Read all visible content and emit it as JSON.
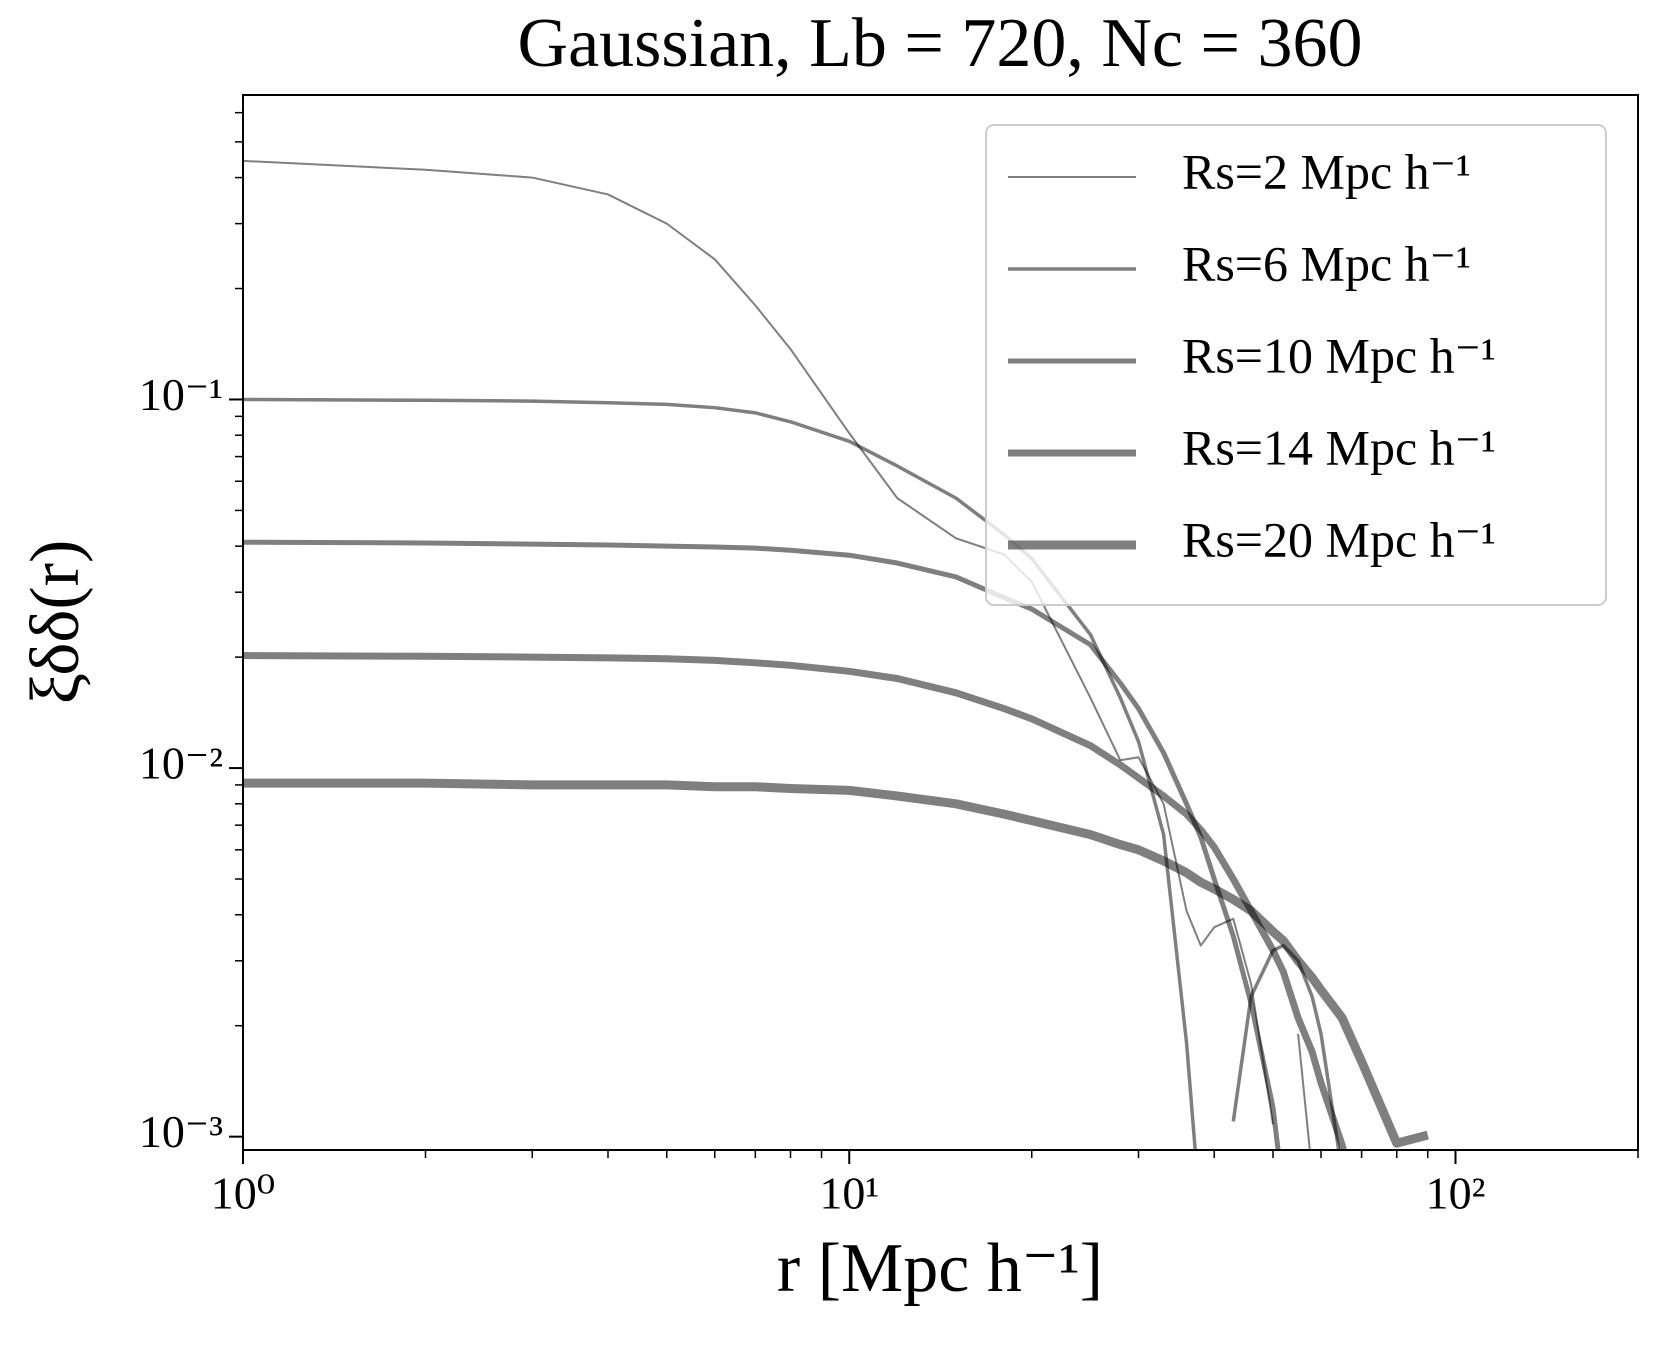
{
  "chart_data": {
    "type": "line",
    "title": "Gaussian, Lb = 720,  Nc = 360",
    "x_label": "r [Mpc h⁻¹]",
    "y_label": "ξδδ(r)",
    "x_scale": "log",
    "y_scale": "log",
    "xlim": [
      1,
      200
    ],
    "ylim": [
      0.00092,
      0.67
    ],
    "xticks": [
      {
        "value": 1,
        "label": "10⁰"
      },
      {
        "value": 10,
        "label": "10¹"
      },
      {
        "value": 100,
        "label": "10²"
      }
    ],
    "yticks": [
      {
        "value": 0.001,
        "label": "10⁻³"
      },
      {
        "value": 0.01,
        "label": "10⁻²"
      },
      {
        "value": 0.1,
        "label": "10⁻¹"
      }
    ],
    "xminorticks": [
      2,
      3,
      4,
      5,
      6,
      7,
      8,
      9,
      20,
      30,
      40,
      50,
      60,
      70,
      80,
      90,
      200
    ],
    "yminorticks": [
      0.002,
      0.003,
      0.004,
      0.005,
      0.006,
      0.007,
      0.008,
      0.009,
      0.02,
      0.03,
      0.04,
      0.05,
      0.06,
      0.07,
      0.08,
      0.09,
      0.2,
      0.3,
      0.4,
      0.5,
      0.6
    ],
    "legend": "upper right",
    "alpha": 0.5,
    "x": [
      1,
      2,
      3,
      4,
      5,
      6,
      7,
      8,
      10,
      12,
      15,
      18,
      20,
      25,
      28,
      30,
      33,
      36,
      38,
      40,
      43,
      46,
      50,
      52,
      55,
      58,
      60,
      65,
      70,
      80,
      90,
      100
    ],
    "series": [
      {
        "name": "Rs=2 Mpc h⁻¹",
        "color": "#000000",
        "linewidth": 2,
        "values": [
          0.444,
          0.42,
          0.4,
          0.36,
          0.3,
          0.24,
          0.18,
          0.137,
          0.081,
          0.054,
          0.042,
          0.038,
          0.032,
          0.0155,
          0.0105,
          0.0107,
          0.008,
          0.0041,
          0.0033,
          0.0037,
          0.0039,
          0.0026,
          0.00108,
          null,
          0.0019,
          0.0008,
          null,
          null,
          null,
          null,
          null,
          null
        ]
      },
      {
        "name": "Rs=6 Mpc h⁻¹",
        "color": "#000000",
        "linewidth": 3.5,
        "values": [
          0.1,
          0.0995,
          0.099,
          0.098,
          0.097,
          0.095,
          0.092,
          0.087,
          0.077,
          0.066,
          0.054,
          0.043,
          0.037,
          0.023,
          0.0155,
          0.0118,
          0.0066,
          0.0018,
          0.0006,
          null,
          0.0011,
          0.0024,
          0.0032,
          0.0033,
          0.003,
          0.0024,
          0.0019,
          0.0008,
          null,
          null,
          null,
          null
        ]
      },
      {
        "name": "Rs=10 Mpc h⁻¹",
        "color": "#000000",
        "linewidth": 5,
        "values": [
          0.041,
          0.0408,
          0.0405,
          0.0403,
          0.04,
          0.0398,
          0.0395,
          0.039,
          0.0378,
          0.036,
          0.033,
          0.029,
          0.027,
          0.0216,
          0.017,
          0.0145,
          0.011,
          0.008,
          0.0065,
          0.005,
          0.0035,
          0.0023,
          0.0012,
          0.0007,
          null,
          null,
          null,
          null,
          null,
          null,
          null,
          null
        ]
      },
      {
        "name": "Rs=14 Mpc h⁻¹",
        "color": "#000000",
        "linewidth": 7,
        "values": [
          0.0202,
          0.0201,
          0.02,
          0.0199,
          0.0198,
          0.0196,
          0.0193,
          0.019,
          0.0183,
          0.0175,
          0.016,
          0.0145,
          0.0136,
          0.0115,
          0.0102,
          0.0094,
          0.0084,
          0.0075,
          0.0068,
          0.0061,
          0.005,
          0.0041,
          0.0032,
          0.0028,
          0.0021,
          0.0017,
          0.0014,
          0.00095,
          0.0006,
          null,
          null,
          null
        ]
      },
      {
        "name": "Rs=20 Mpc h⁻¹",
        "color": "#000000",
        "linewidth": 9,
        "values": [
          0.0091,
          0.0091,
          0.009,
          0.009,
          0.009,
          0.0089,
          0.0089,
          0.0088,
          0.0087,
          0.0084,
          0.008,
          0.0075,
          0.0072,
          0.0066,
          0.0062,
          0.006,
          0.0056,
          0.0052,
          0.0049,
          0.0047,
          0.0044,
          0.0041,
          0.0036,
          0.0034,
          0.003,
          0.0027,
          0.0025,
          0.0021,
          0.0016,
          0.00096,
          0.00101,
          null
        ]
      }
    ]
  }
}
